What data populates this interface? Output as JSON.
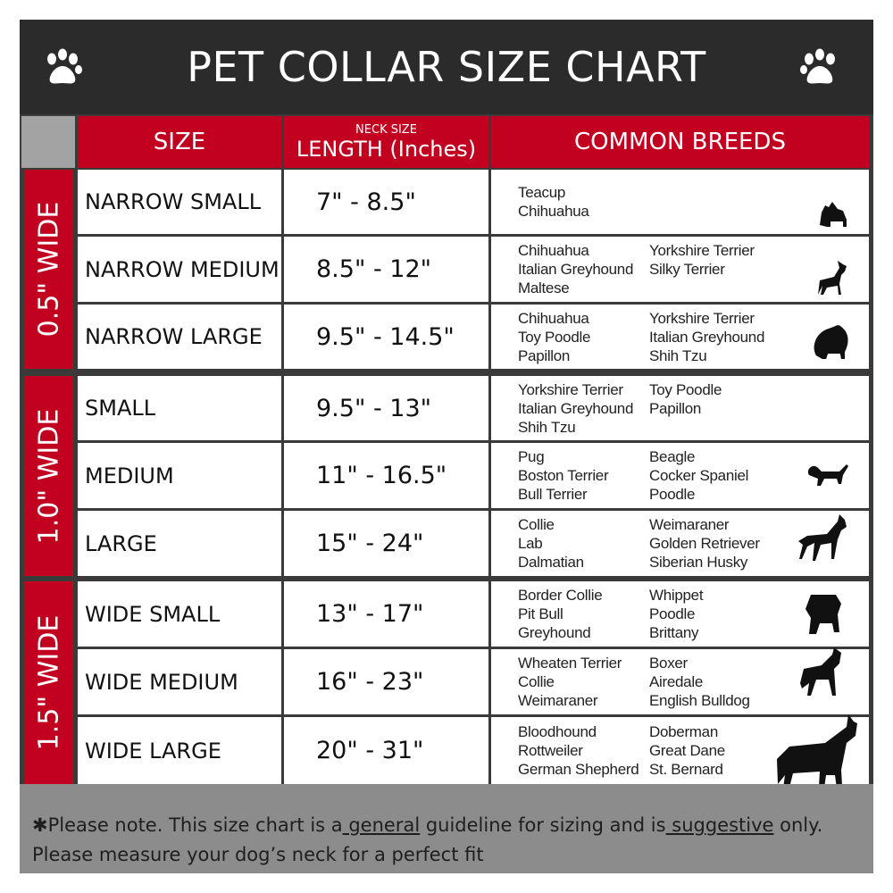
{
  "title": "PET COLLAR SIZE CHART",
  "headers": {
    "size": "SIZE",
    "length_small": "NECK SIZE",
    "length": "LENGTH (Inches)",
    "breeds": "COMMON BREEDS"
  },
  "groups": [
    {
      "label": "0.5\" WIDE",
      "rows": [
        {
          "size": "NARROW SMALL",
          "length": "7\" - 8.5\"",
          "breeds_col1": [
            "Teacup",
            "Chihuahua"
          ],
          "breeds_col2": [],
          "icon": "yorkie-silhouette-icon"
        },
        {
          "size": "NARROW MEDIUM",
          "length": "8.5\" - 12\"",
          "breeds_col1": [
            "Chihuahua",
            "Italian Greyhound",
            "Maltese"
          ],
          "breeds_col2": [
            "Yorkshire Terrier",
            "Silky Terrier"
          ],
          "icon": "chihuahua-silhouette-icon"
        },
        {
          "size": "NARROW LARGE",
          "length": "9.5\" - 14.5\"",
          "breeds_col1": [
            "Chihuahua",
            "Toy Poodle",
            "Papillon"
          ],
          "breeds_col2": [
            "Yorkshire Terrier",
            "Italian Greyhound",
            "Shih Tzu"
          ],
          "icon": "pomeranian-silhouette-icon"
        }
      ]
    },
    {
      "label": "1.0\" WIDE",
      "rows": [
        {
          "size": "SMALL",
          "length": "9.5\" - 13\"",
          "breeds_col1": [
            "Yorkshire Terrier",
            "Italian Greyhound",
            "Shih Tzu"
          ],
          "breeds_col2": [
            "Toy Poodle",
            "Papillon"
          ],
          "icon": "pomeranian-silhouette-icon"
        },
        {
          "size": "MEDIUM",
          "length": "11\" - 16.5\"",
          "breeds_col1": [
            "Pug",
            "Boston Terrier",
            "Bull Terrier"
          ],
          "breeds_col2": [
            "Beagle",
            "Cocker Spaniel",
            "Poodle"
          ],
          "icon": "dachshund-silhouette-icon"
        },
        {
          "size": "LARGE",
          "length": "15\" - 24\"",
          "breeds_col1": [
            "Collie",
            "Lab",
            "Dalmatian"
          ],
          "breeds_col2": [
            "Weimaraner",
            "Golden Retriever",
            "Siberian Husky"
          ],
          "icon": "shepherd-silhouette-icon"
        }
      ]
    },
    {
      "label": "1.5\" WIDE",
      "rows": [
        {
          "size": "WIDE SMALL",
          "length": "13\" - 17\"",
          "breeds_col1": [
            "Border Collie",
            "Pit Bull",
            "Greyhound"
          ],
          "breeds_col2": [
            "Whippet",
            "Poodle",
            "Brittany"
          ],
          "icon": "bulldog-silhouette-icon"
        },
        {
          "size": "WIDE MEDIUM",
          "length": "16\" - 23\"",
          "breeds_col1": [
            "Wheaten Terrier",
            "Collie",
            "Weimaraner"
          ],
          "breeds_col2": [
            "Boxer",
            "Airedale",
            "English Bulldog"
          ],
          "icon": "pitbull-silhouette-icon"
        },
        {
          "size": "WIDE LARGE",
          "length": "20\" - 31\"",
          "breeds_col1": [
            "Bloodhound",
            "Rottweiler",
            "German Shepherd"
          ],
          "breeds_col2": [
            "Doberman",
            "Great Dane",
            "St. Bernard"
          ],
          "icon": "doberman-silhouette-icon"
        }
      ]
    }
  ],
  "footer": {
    "p1": "✱Please note. This size chart is a",
    "u1": " general",
    "p2": " guideline for sizing and is",
    "u2": " suggestive",
    "p3": " only.",
    "line2": "Please measure your dog’s neck for a perfect fit"
  },
  "colors": {
    "red": "#c2001f",
    "dark": "#2b2b2b",
    "footer_gray": "#8c8c8c"
  }
}
